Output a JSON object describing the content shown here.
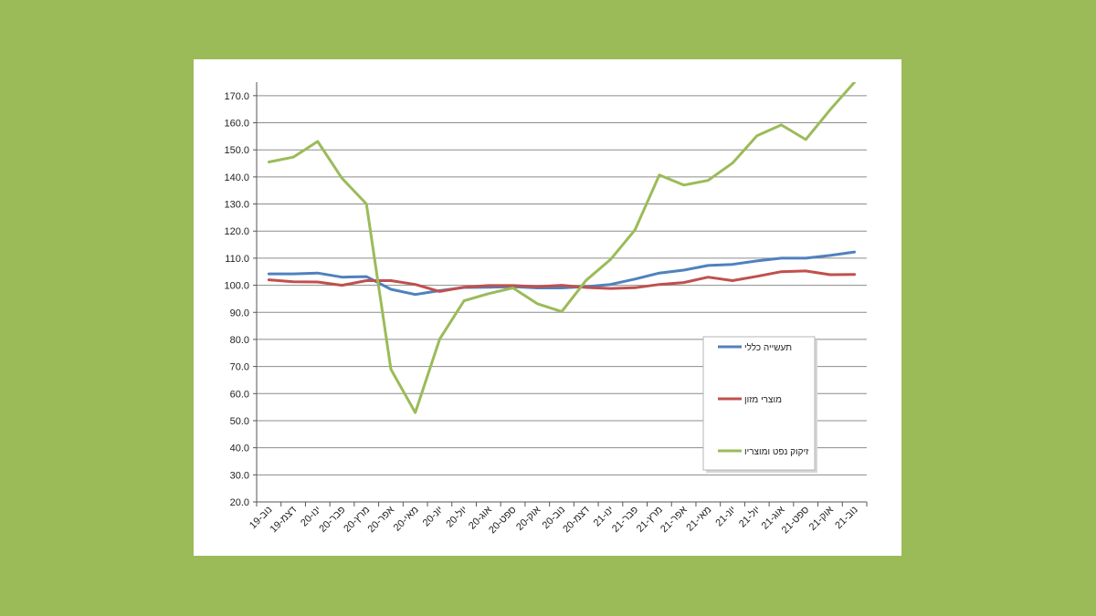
{
  "colors": {
    "background": "#9bbb59",
    "card": "#ffffff",
    "grid": "#8c8c8c",
    "axis": "#555555"
  },
  "chart_data": {
    "type": "line",
    "title": "",
    "xlabel": "",
    "ylabel": "",
    "ylim": [
      20,
      175
    ],
    "yticks": [
      20,
      30,
      40,
      50,
      60,
      70,
      80,
      90,
      100,
      110,
      120,
      130,
      140,
      150,
      160,
      170
    ],
    "ytick_labels": [
      "20.0",
      "30.0",
      "40.0",
      "50.0",
      "60.0",
      "70.0",
      "80.0",
      "90.0",
      "100.0",
      "110.0",
      "120.0",
      "130.0",
      "140.0",
      "150.0",
      "160.0",
      "170.0"
    ],
    "grid": true,
    "legend_position": "bottom-right",
    "categories": [
      "נוב-19",
      "דצמ-19",
      "ינו-20",
      "פבר-20",
      "מרץ-20",
      "אפר-20",
      "מאי-20",
      "יונ-20",
      "יול-20",
      "אוג-20",
      "ספט-20",
      "אוק-20",
      "נוב-20",
      "דצמ-20",
      "ינו-21",
      "פבר-21",
      "מרץ-21",
      "אפר-21",
      "מאי-21",
      "יונ-21",
      "יול-21",
      "אוג-21",
      "ספט-21",
      "אוק-21",
      "נוב-21"
    ],
    "series": [
      {
        "name": "תעשייה כללי",
        "color": "#4f81bd",
        "values": [
          104.2,
          104.2,
          104.5,
          103.0,
          103.2,
          98.5,
          96.6,
          98.0,
          99.2,
          99.3,
          99.5,
          99.0,
          99.0,
          99.5,
          100.3,
          102.3,
          104.5,
          105.6,
          107.3,
          107.7,
          109.0,
          110.0,
          110.0,
          111.0,
          112.3
        ]
      },
      {
        "name": "מוצרי מזון",
        "color": "#c0504d",
        "values": [
          102.0,
          101.3,
          101.2,
          100.0,
          101.7,
          101.7,
          100.3,
          97.7,
          99.3,
          99.9,
          99.9,
          99.5,
          100.0,
          99.2,
          98.8,
          99.1,
          100.3,
          101.0,
          103.0,
          101.7,
          103.3,
          105.0,
          105.3,
          103.9,
          104.0
        ]
      },
      {
        "name": "זיקוק נפט ומוצריו",
        "color": "#9bbb59",
        "values": [
          145.5,
          147.3,
          153.1,
          139.5,
          130.0,
          69.0,
          53.0,
          80.1,
          94.3,
          96.9,
          99.0,
          93.2,
          90.3,
          101.8,
          109.5,
          120.4,
          140.7,
          137.0,
          138.7,
          145.1,
          155.2,
          159.2,
          153.8,
          164.8,
          175.0
        ]
      }
    ]
  }
}
